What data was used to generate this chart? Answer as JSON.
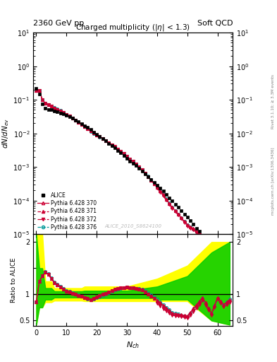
{
  "title_left": "2360 GeV pp",
  "title_right": "Soft QCD",
  "main_title": "Charged multiplicity (|\\eta| < 1.3)",
  "ylabel_main": "dN/dN_{ev}",
  "ylabel_ratio": "Ratio to ALICE",
  "xlabel": "N_{ch}",
  "right_label_top": "Rivet 3.1.10; ≥ 3.3M events",
  "right_label_bot": "mcplots.cern.ch [arXiv:1306.3436]",
  "watermark": "ALICE_2010_S8624100",
  "ylim_main": [
    1e-05,
    10
  ],
  "ylim_ratio": [
    0.4,
    2.15
  ],
  "xlim": [
    -1,
    65
  ],
  "color_red": "#cc0033",
  "color_teal": "#009999",
  "color_alice": "#000000",
  "band_yellow": "#ffff00",
  "band_green": "#00cc00"
}
